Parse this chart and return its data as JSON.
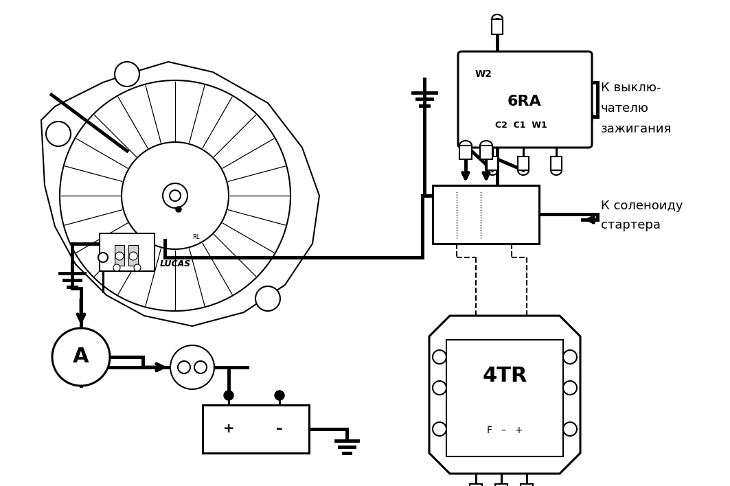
{
  "bg_color": "#ffffff",
  "line_color": "#000000",
  "fig_width": 10.63,
  "fig_height": 7.08,
  "dpi": 100,
  "text_6RA": "6RA",
  "text_W2": "W2",
  "text_C2C1W1": "C2  C1  W1",
  "text_right1": "К выклю-",
  "text_right2": "чателю",
  "text_right3": "зажигания",
  "text_right4": "К соленоиду",
  "text_right5": "стартера",
  "text_4TR": "4TR",
  "text_F_labels": "F   –   +",
  "text_A": "A",
  "text_LUCAS": "LUCAS"
}
